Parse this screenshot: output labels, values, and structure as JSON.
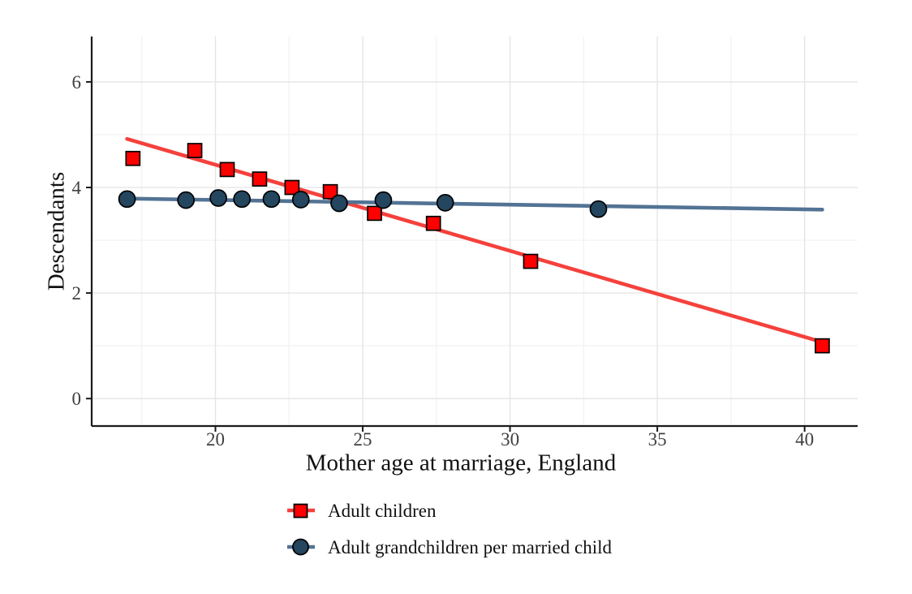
{
  "chart_data": {
    "type": "scatter",
    "title": "",
    "xlabel": "Mother age at marriage, England",
    "ylabel": "Descendants",
    "xlim": [
      15.8,
      41.8
    ],
    "ylim": [
      -0.52,
      6.86
    ],
    "x_ticks": [
      20,
      25,
      30,
      35,
      40
    ],
    "y_ticks": [
      0,
      2,
      4,
      6
    ],
    "x_minor_ticks": [
      17.5,
      22.5,
      27.5,
      32.5,
      37.5
    ],
    "y_minor_ticks": [
      1,
      3,
      5
    ],
    "grid": "on",
    "legend_position": "bottom-left",
    "series": [
      {
        "name": "Adult children",
        "marker": "square",
        "marker_fill": "#FF0000",
        "marker_edge": "#000000",
        "line_color": "#F5413C",
        "points": [
          [
            17.2,
            4.55
          ],
          [
            19.3,
            4.7
          ],
          [
            20.4,
            4.34
          ],
          [
            21.5,
            4.16
          ],
          [
            22.6,
            4.0
          ],
          [
            23.9,
            3.92
          ],
          [
            25.4,
            3.51
          ],
          [
            27.4,
            3.32
          ],
          [
            30.7,
            2.6
          ],
          [
            40.6,
            1.0
          ]
        ],
        "trend": {
          "x1": 17.0,
          "y1": 4.92,
          "x2": 40.6,
          "y2": 1.07
        }
      },
      {
        "name": "Adult grandchildren per married child",
        "marker": "circle",
        "marker_fill": "#24465F",
        "marker_edge": "#000000",
        "line_color": "#537394",
        "points": [
          [
            17.0,
            3.78
          ],
          [
            19.0,
            3.76
          ],
          [
            20.1,
            3.8
          ],
          [
            20.9,
            3.78
          ],
          [
            21.9,
            3.78
          ],
          [
            22.9,
            3.77
          ],
          [
            24.2,
            3.7
          ],
          [
            25.7,
            3.76
          ],
          [
            27.8,
            3.71
          ],
          [
            33.0,
            3.59
          ]
        ],
        "trend": {
          "x1": 17.0,
          "y1": 3.79,
          "x2": 40.6,
          "y2": 3.58
        }
      }
    ]
  },
  "colors": {
    "background": "#FFFFFF",
    "grid_major": "#E5E5E5",
    "grid_minor": "#F2F2F2",
    "axis_line": "#1A1A1A",
    "tick_mark": "#1A1A1A",
    "tick_text": "#404040",
    "label_text": "#111111"
  }
}
